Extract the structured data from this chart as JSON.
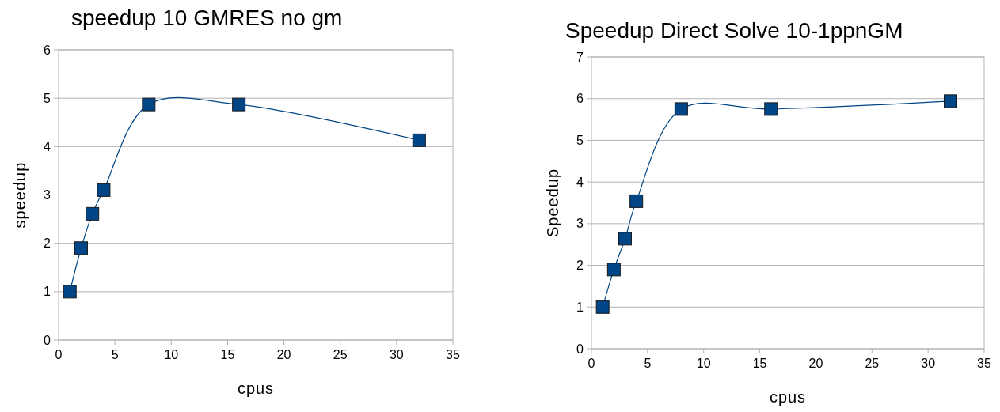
{
  "chart_data": [
    {
      "type": "line",
      "title": "speedup 10 GMRES no gm",
      "xlabel": "cpus",
      "ylabel": "speedup",
      "x": [
        1,
        2,
        3,
        4,
        8,
        16,
        32
      ],
      "series": [
        {
          "color": "#004586",
          "values": [
            1.0,
            1.9,
            2.61,
            3.1,
            4.87,
            4.87,
            4.13
          ]
        }
      ],
      "xlim": [
        0,
        35
      ],
      "xticks": [
        0,
        5,
        10,
        15,
        20,
        25,
        30,
        35
      ],
      "ylim": [
        0,
        6
      ],
      "yticks": [
        0,
        1,
        2,
        3,
        4,
        5,
        6
      ],
      "grid": "y",
      "marker": "square",
      "line_style": "solid"
    },
    {
      "type": "line",
      "title": "Speedup Direct Solve 10-1ppnGM",
      "xlabel": "cpus",
      "ylabel": "Speedup",
      "x": [
        1,
        2,
        3,
        4,
        8,
        16,
        32
      ],
      "series": [
        {
          "color": "#004586",
          "values": [
            1.0,
            1.9,
            2.64,
            3.54,
            5.75,
            5.75,
            5.94
          ]
        }
      ],
      "xlim": [
        0,
        35
      ],
      "xticks": [
        0,
        5,
        10,
        15,
        20,
        25,
        30,
        35
      ],
      "ylim": [
        0,
        7
      ],
      "yticks": [
        0,
        1,
        2,
        3,
        4,
        5,
        6,
        7
      ],
      "grid": "y",
      "marker": "square",
      "line_style": "solid"
    }
  ]
}
